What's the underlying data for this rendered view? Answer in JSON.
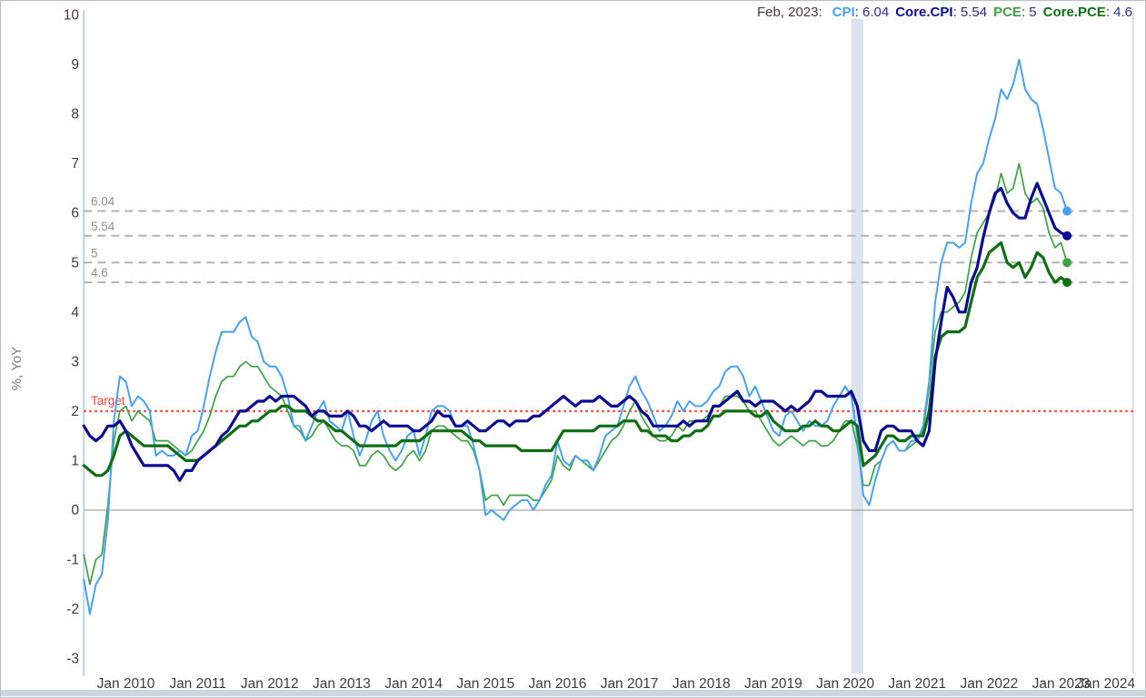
{
  "legend": {
    "date_label": "Feb, 2023:",
    "items": [
      {
        "label": "CPI",
        "value_text": ": 6.04"
      },
      {
        "label": "Core.CPI",
        "value_text": ": 5.54"
      },
      {
        "label": "PCE",
        "value_text": ": 5"
      },
      {
        "label": "Core.PCE",
        "value_text": ": 4.6"
      }
    ]
  },
  "chart_data": {
    "type": "line",
    "title": "",
    "xlabel": "",
    "ylabel": "%, YoY",
    "frequency": "monthly",
    "x_axis_start": "2009-06",
    "x_axis_end": "2024-01",
    "data_start": "2009-06",
    "data_end": "2023-02",
    "ylim": [
      -3.4,
      10.1
    ],
    "grid": "off",
    "legend_position": "top-right",
    "colors": {
      "axis_line": "#bdd3e8",
      "zero_line": "#909090",
      "right_border": "#d8dde2",
      "reference_dash": "#b3b3b3",
      "reference_label": "#909090",
      "tick_text": "#3c3c3c",
      "axis_title_text": "#7a7a7a",
      "recession_band": "#dce3ec"
    },
    "y_ticks": [
      10,
      9,
      8,
      7,
      6,
      5,
      4,
      3,
      2,
      1,
      0,
      -1,
      -2,
      -3
    ],
    "x_ticks": [
      {
        "label": "Jan 2010",
        "month": "2010-01"
      },
      {
        "label": "Jan 2011",
        "month": "2011-01"
      },
      {
        "label": "Jan 2012",
        "month": "2012-01"
      },
      {
        "label": "Jan 2013",
        "month": "2013-01"
      },
      {
        "label": "Jan 2014",
        "month": "2014-01"
      },
      {
        "label": "Jan 2015",
        "month": "2015-01"
      },
      {
        "label": "Jan 2016",
        "month": "2016-01"
      },
      {
        "label": "Jan 2017",
        "month": "2017-01"
      },
      {
        "label": "Jan 2018",
        "month": "2018-01"
      },
      {
        "label": "Jan 2019",
        "month": "2019-01"
      },
      {
        "label": "Jan 2020",
        "month": "2020-01"
      },
      {
        "label": "Jan 2021",
        "month": "2021-01"
      },
      {
        "label": "Jan 2022",
        "month": "2022-01"
      },
      {
        "label": "Jan 2023",
        "month": "2023-01"
      },
      {
        "label": "Jan 2024",
        "month": "2024-01"
      }
    ],
    "dashed_lines": [
      {
        "label": "6.04",
        "value": 6.04
      },
      {
        "label": "5.54",
        "value": 5.54
      },
      {
        "label": "5",
        "value": 5
      },
      {
        "label": "4.6",
        "value": 4.6
      }
    ],
    "target": {
      "label": "Target",
      "value": 2,
      "color": "#f5423b"
    },
    "recession_band": {
      "from": "2020-02",
      "to": "2020-04"
    },
    "series": [
      {
        "name": "CPI",
        "color": "#46a2f1",
        "width": 2,
        "z": 2,
        "end_dot": true,
        "values": [
          -1.4,
          -2.1,
          -1.5,
          -1.3,
          -0.2,
          1.8,
          2.7,
          2.6,
          2.1,
          2.3,
          2.2,
          2.0,
          1.1,
          1.2,
          1.1,
          1.1,
          1.2,
          1.1,
          1.5,
          1.6,
          2.1,
          2.7,
          3.2,
          3.6,
          3.6,
          3.6,
          3.8,
          3.9,
          3.5,
          3.4,
          3.0,
          2.9,
          2.9,
          2.7,
          2.3,
          1.7,
          1.7,
          1.4,
          1.7,
          2.0,
          2.2,
          1.8,
          1.7,
          1.6,
          2.0,
          1.5,
          1.1,
          1.4,
          1.8,
          2.0,
          1.5,
          1.2,
          1.0,
          1.2,
          1.5,
          1.6,
          1.1,
          1.5,
          2.0,
          2.1,
          2.1,
          2.0,
          1.7,
          1.7,
          1.7,
          1.3,
          0.8,
          -0.1,
          0.0,
          -0.1,
          -0.2,
          0.0,
          0.1,
          0.2,
          0.2,
          0.0,
          0.2,
          0.5,
          0.7,
          1.4,
          1.0,
          0.9,
          1.1,
          1.0,
          1.0,
          0.8,
          1.1,
          1.5,
          1.6,
          1.7,
          2.1,
          2.5,
          2.7,
          2.4,
          2.2,
          1.9,
          1.6,
          1.7,
          1.9,
          2.2,
          2.0,
          2.2,
          2.1,
          2.1,
          2.2,
          2.4,
          2.5,
          2.8,
          2.9,
          2.9,
          2.7,
          2.3,
          2.5,
          2.2,
          1.9,
          1.6,
          1.5,
          1.9,
          2.0,
          1.8,
          1.6,
          1.8,
          1.7,
          1.7,
          1.8,
          2.1,
          2.3,
          2.5,
          2.3,
          1.5,
          0.3,
          0.1,
          0.6,
          1.0,
          1.3,
          1.4,
          1.2,
          1.2,
          1.4,
          1.4,
          1.7,
          2.6,
          4.2,
          5.0,
          5.4,
          5.4,
          5.3,
          5.4,
          6.2,
          6.8,
          7.0,
          7.5,
          7.9,
          8.5,
          8.3,
          8.6,
          9.1,
          8.5,
          8.3,
          8.2,
          7.7,
          7.1,
          6.5,
          6.4,
          6.04
        ]
      },
      {
        "name": "Core.CPI",
        "color": "#0c0c92",
        "width": 3.2,
        "z": 4,
        "end_dot": true,
        "values": [
          1.7,
          1.5,
          1.4,
          1.5,
          1.7,
          1.7,
          1.8,
          1.6,
          1.3,
          1.1,
          0.9,
          0.9,
          0.9,
          0.9,
          0.9,
          0.8,
          0.6,
          0.8,
          0.8,
          1.0,
          1.1,
          1.2,
          1.3,
          1.5,
          1.6,
          1.8,
          2.0,
          2.0,
          2.1,
          2.2,
          2.2,
          2.3,
          2.2,
          2.3,
          2.3,
          2.3,
          2.2,
          2.1,
          1.9,
          2.0,
          2.0,
          1.9,
          1.9,
          1.9,
          2.0,
          1.9,
          1.7,
          1.7,
          1.6,
          1.7,
          1.8,
          1.7,
          1.7,
          1.7,
          1.7,
          1.6,
          1.6,
          1.7,
          1.8,
          2.0,
          1.9,
          1.9,
          1.7,
          1.7,
          1.8,
          1.7,
          1.6,
          1.6,
          1.7,
          1.8,
          1.8,
          1.7,
          1.8,
          1.8,
          1.8,
          1.9,
          1.9,
          2.0,
          2.1,
          2.2,
          2.3,
          2.2,
          2.1,
          2.2,
          2.2,
          2.2,
          2.3,
          2.2,
          2.1,
          2.1,
          2.2,
          2.3,
          2.2,
          2.0,
          1.9,
          1.7,
          1.7,
          1.7,
          1.7,
          1.7,
          1.8,
          1.7,
          1.8,
          1.8,
          1.8,
          2.1,
          2.1,
          2.2,
          2.3,
          2.4,
          2.2,
          2.2,
          2.1,
          2.2,
          2.2,
          2.2,
          2.1,
          2.0,
          2.1,
          2.0,
          2.1,
          2.2,
          2.4,
          2.4,
          2.3,
          2.3,
          2.3,
          2.3,
          2.4,
          2.1,
          1.4,
          1.2,
          1.2,
          1.6,
          1.7,
          1.7,
          1.6,
          1.6,
          1.6,
          1.4,
          1.3,
          1.6,
          3.0,
          3.8,
          4.5,
          4.3,
          4.0,
          4.0,
          4.6,
          4.9,
          5.5,
          6.0,
          6.4,
          6.5,
          6.2,
          6.0,
          5.9,
          5.9,
          6.3,
          6.6,
          6.3,
          6.0,
          5.7,
          5.6,
          5.54
        ]
      },
      {
        "name": "PCE",
        "color": "#3da144",
        "width": 1.7,
        "z": 1,
        "end_dot": true,
        "values": [
          -0.9,
          -1.5,
          -1.0,
          -0.9,
          0.1,
          1.4,
          2.0,
          2.1,
          1.8,
          2.0,
          1.9,
          1.8,
          1.4,
          1.4,
          1.4,
          1.3,
          1.2,
          1.1,
          1.2,
          1.4,
          1.6,
          1.9,
          2.3,
          2.6,
          2.7,
          2.7,
          2.9,
          3.0,
          2.9,
          2.9,
          2.7,
          2.5,
          2.4,
          2.3,
          2.0,
          1.7,
          1.6,
          1.4,
          1.5,
          1.7,
          1.8,
          1.6,
          1.4,
          1.3,
          1.3,
          1.2,
          0.9,
          0.9,
          1.1,
          1.2,
          1.1,
          0.9,
          0.8,
          0.9,
          1.1,
          1.2,
          1.0,
          1.2,
          1.6,
          1.7,
          1.7,
          1.6,
          1.5,
          1.4,
          1.4,
          1.2,
          0.8,
          0.2,
          0.3,
          0.3,
          0.1,
          0.3,
          0.3,
          0.3,
          0.3,
          0.2,
          0.2,
          0.4,
          0.6,
          1.1,
          0.9,
          0.8,
          1.1,
          1.0,
          0.9,
          0.8,
          1.0,
          1.2,
          1.4,
          1.5,
          1.7,
          2.0,
          2.2,
          1.9,
          1.7,
          1.5,
          1.4,
          1.4,
          1.5,
          1.7,
          1.6,
          1.8,
          1.8,
          1.8,
          1.9,
          2.1,
          2.1,
          2.3,
          2.3,
          2.3,
          2.2,
          2.0,
          2.0,
          1.8,
          1.6,
          1.4,
          1.3,
          1.4,
          1.5,
          1.4,
          1.3,
          1.4,
          1.4,
          1.3,
          1.3,
          1.4,
          1.6,
          1.8,
          1.8,
          1.3,
          0.5,
          0.5,
          0.9,
          1.0,
          1.3,
          1.4,
          1.2,
          1.2,
          1.3,
          1.4,
          1.6,
          2.5,
          3.6,
          4.0,
          4.0,
          4.1,
          4.2,
          4.4,
          5.1,
          5.6,
          5.8,
          6.0,
          6.3,
          6.8,
          6.4,
          6.5,
          7.0,
          6.4,
          6.2,
          6.3,
          6.1,
          5.6,
          5.3,
          5.4,
          5.0
        ]
      },
      {
        "name": "Core.PCE",
        "color": "#0e6e12",
        "width": 3.2,
        "z": 3,
        "end_dot": true,
        "values": [
          0.9,
          0.8,
          0.7,
          0.7,
          0.8,
          1.1,
          1.5,
          1.6,
          1.5,
          1.4,
          1.3,
          1.3,
          1.3,
          1.3,
          1.3,
          1.2,
          1.1,
          1.0,
          1.0,
          1.0,
          1.1,
          1.2,
          1.3,
          1.4,
          1.5,
          1.6,
          1.7,
          1.7,
          1.8,
          1.8,
          1.9,
          2.0,
          2.0,
          2.1,
          2.1,
          2.0,
          2.0,
          2.0,
          1.9,
          1.8,
          1.8,
          1.7,
          1.6,
          1.6,
          1.5,
          1.4,
          1.3,
          1.3,
          1.3,
          1.3,
          1.3,
          1.3,
          1.3,
          1.4,
          1.4,
          1.4,
          1.4,
          1.5,
          1.6,
          1.6,
          1.6,
          1.6,
          1.6,
          1.6,
          1.5,
          1.4,
          1.4,
          1.3,
          1.3,
          1.3,
          1.3,
          1.3,
          1.3,
          1.2,
          1.2,
          1.2,
          1.2,
          1.2,
          1.2,
          1.4,
          1.6,
          1.6,
          1.6,
          1.6,
          1.6,
          1.6,
          1.7,
          1.7,
          1.7,
          1.7,
          1.8,
          1.8,
          1.8,
          1.6,
          1.6,
          1.5,
          1.5,
          1.5,
          1.4,
          1.4,
          1.5,
          1.5,
          1.6,
          1.6,
          1.7,
          1.9,
          1.9,
          2.0,
          2.0,
          2.0,
          2.0,
          2.0,
          1.9,
          1.9,
          2.0,
          1.8,
          1.7,
          1.6,
          1.6,
          1.6,
          1.7,
          1.7,
          1.8,
          1.7,
          1.7,
          1.6,
          1.6,
          1.7,
          1.8,
          1.7,
          0.9,
          1.0,
          1.1,
          1.3,
          1.5,
          1.5,
          1.4,
          1.4,
          1.5,
          1.5,
          1.5,
          2.0,
          3.1,
          3.5,
          3.6,
          3.6,
          3.6,
          3.7,
          4.2,
          4.7,
          4.9,
          5.2,
          5.3,
          5.4,
          5.0,
          4.9,
          5.0,
          4.7,
          4.9,
          5.2,
          5.1,
          4.8,
          4.6,
          4.7,
          4.6
        ]
      }
    ]
  }
}
